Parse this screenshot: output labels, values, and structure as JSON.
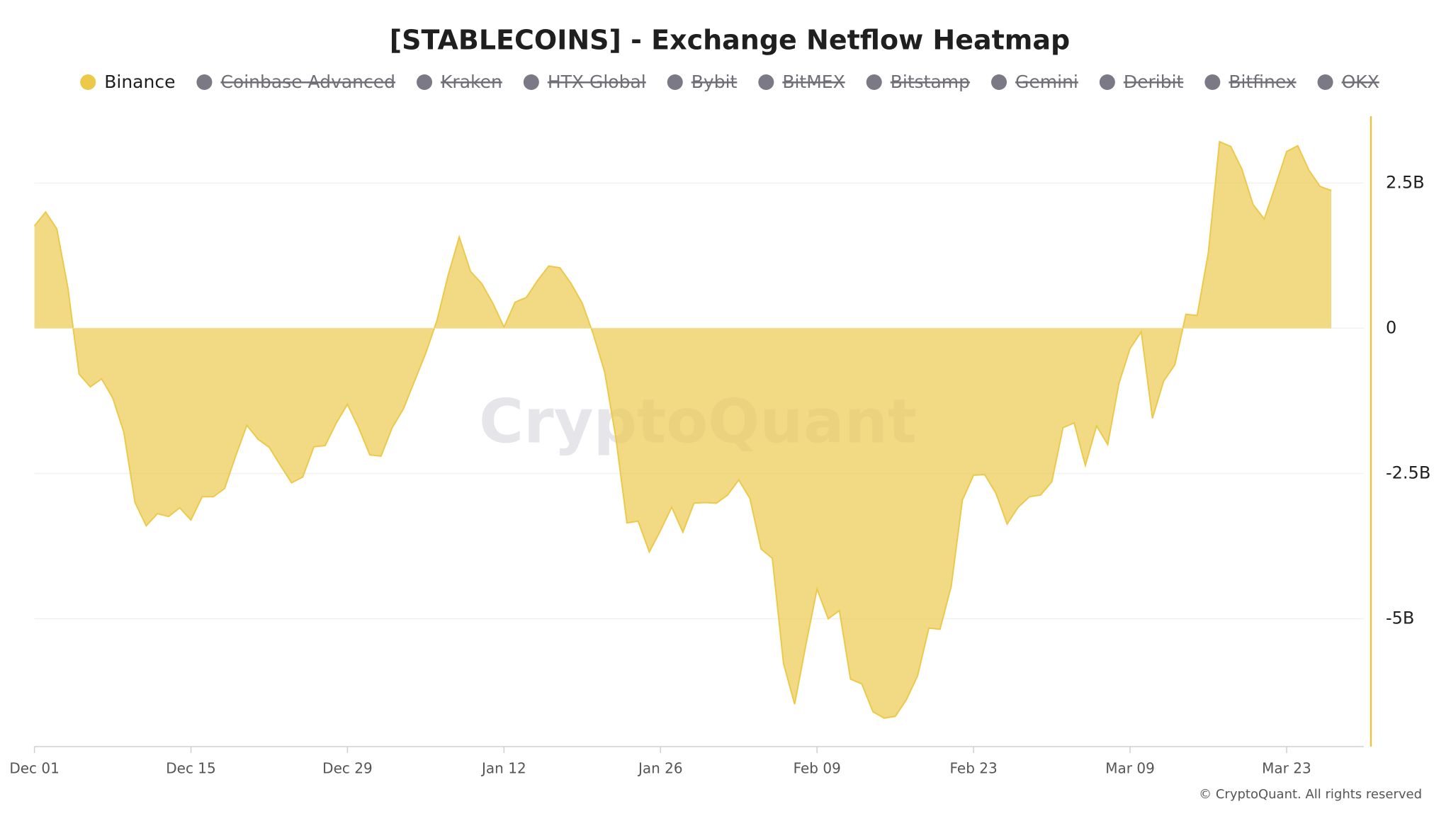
{
  "chart_data": {
    "type": "area",
    "title": "[STABLECOINS] - Exchange Netflow Heatmap",
    "watermark": "CryptoQuant",
    "footer": "© CryptoQuant. All rights reserved",
    "categories": [
      "Dec 01",
      null,
      null,
      null,
      null,
      null,
      null,
      null,
      null,
      null,
      null,
      null,
      null,
      null,
      "Dec 15",
      null,
      null,
      null,
      null,
      null,
      null,
      null,
      null,
      null,
      null,
      null,
      null,
      null,
      "Dec 29",
      null,
      null,
      null,
      null,
      null,
      null,
      null,
      null,
      null,
      null,
      null,
      null,
      null,
      "Jan 12",
      null,
      null,
      null,
      null,
      null,
      null,
      null,
      null,
      null,
      null,
      null,
      null,
      null,
      "Jan 26",
      null,
      null,
      null,
      null,
      null,
      null,
      null,
      null,
      null,
      null,
      null,
      null,
      null,
      "Feb 09",
      null,
      null,
      null,
      null,
      null,
      null,
      null,
      null,
      null,
      null,
      null,
      null,
      null,
      "Feb 23",
      null,
      null,
      null,
      null,
      null,
      null,
      null,
      null,
      null,
      null,
      null,
      null,
      null,
      "Mar 09",
      null,
      null,
      null,
      null,
      null,
      null,
      null,
      null,
      null,
      null,
      null,
      null,
      null,
      "Mar 23",
      null,
      null,
      null,
      null
    ],
    "series": [
      {
        "name": "Binance",
        "color": "#ecc94b",
        "visible": true,
        "values": [
          1.76,
          2.0,
          1.71,
          0.69,
          -0.79,
          -1.01,
          -0.87,
          -1.2,
          -1.79,
          -3.0,
          -3.4,
          -3.19,
          -3.24,
          -3.09,
          -3.3,
          -2.9,
          -2.9,
          -2.76,
          -2.2,
          -1.67,
          -1.91,
          -2.05,
          -2.36,
          -2.66,
          -2.56,
          -2.04,
          -2.02,
          -1.63,
          -1.31,
          -1.71,
          -2.18,
          -2.2,
          -1.71,
          -1.39,
          -0.91,
          -0.43,
          0.13,
          0.91,
          1.57,
          0.98,
          0.77,
          0.43,
          0.02,
          0.45,
          0.53,
          0.82,
          1.07,
          1.04,
          0.77,
          0.43,
          -0.11,
          -0.75,
          -1.88,
          -3.35,
          -3.32,
          -3.85,
          -3.48,
          -3.08,
          -3.51,
          -3.01,
          -3.0,
          -3.01,
          -2.87,
          -2.61,
          -2.93,
          -3.8,
          -3.96,
          -5.77,
          -6.47,
          -5.45,
          -4.49,
          -5.0,
          -4.86,
          -6.04,
          -6.12,
          -6.6,
          -6.71,
          -6.68,
          -6.39,
          -5.98,
          -5.16,
          -5.18,
          -4.44,
          -2.96,
          -2.53,
          -2.52,
          -2.84,
          -3.37,
          -3.08,
          -2.9,
          -2.87,
          -2.64,
          -1.71,
          -1.63,
          -2.36,
          -1.68,
          -2.0,
          -0.95,
          -0.35,
          -0.06,
          -1.55,
          -0.91,
          -0.63,
          0.24,
          0.22,
          1.3,
          3.21,
          3.13,
          2.74,
          2.13,
          1.88,
          2.45,
          3.04,
          3.14,
          2.72,
          2.44,
          2.37
        ]
      },
      {
        "name": "Coinbase Advanced",
        "color": "#7a7985",
        "visible": false
      },
      {
        "name": "Kraken",
        "color": "#7a7985",
        "visible": false
      },
      {
        "name": "HTX Global",
        "color": "#7a7985",
        "visible": false
      },
      {
        "name": "Bybit",
        "color": "#7a7985",
        "visible": false
      },
      {
        "name": "BitMEX",
        "color": "#7a7985",
        "visible": false
      },
      {
        "name": "Bitstamp",
        "color": "#7a7985",
        "visible": false
      },
      {
        "name": "Gemini",
        "color": "#7a7985",
        "visible": false
      },
      {
        "name": "Deribit",
        "color": "#7a7985",
        "visible": false
      },
      {
        "name": "Bitfinex",
        "color": "#7a7985",
        "visible": false
      },
      {
        "name": "OKX",
        "color": "#7a7985",
        "visible": false
      }
    ],
    "ylim": [
      -7.2,
      3.65
    ],
    "yticks": [
      {
        "value": 2.5,
        "label": "2.5B"
      },
      0,
      {
        "value": -2.5,
        "label": "-2.5B"
      },
      {
        "value": -5,
        "label": "-5B"
      }
    ],
    "grid": true,
    "y_axis_side": "right"
  }
}
